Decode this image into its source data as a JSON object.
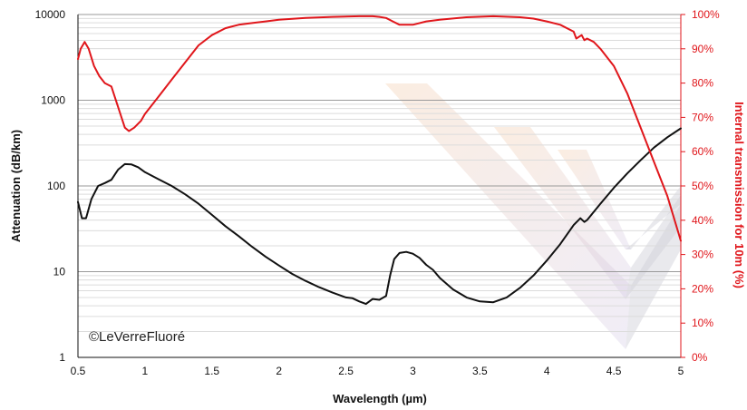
{
  "chart_data": {
    "type": "line",
    "xlabel": "Wavelength (µm)",
    "ylabel": "Attenuation (dB/km)",
    "y2label": "Internal transmission for 10m (%)",
    "annotation": "©LeVerreFluoré",
    "xlim": [
      0.5,
      5
    ],
    "ylim": [
      1,
      10000
    ],
    "y_scale": "log",
    "y2lim": [
      0,
      100
    ],
    "x_ticks": [
      "0.5",
      "1",
      "1.5",
      "2",
      "2.5",
      "3",
      "3.5",
      "4",
      "4.5",
      "5"
    ],
    "y_ticks": [
      "1",
      "10",
      "100",
      "1000",
      "10000"
    ],
    "y2_ticks": [
      "0%",
      "10%",
      "20%",
      "30%",
      "40%",
      "50%",
      "60%",
      "70%",
      "80%",
      "90%",
      "100%"
    ],
    "grid": true,
    "colors": {
      "attenuation": "#111111",
      "transmission": "#e0161b",
      "grid_major": "#9a9a9a",
      "grid_minor": "#dcdcdc"
    },
    "series": [
      {
        "axis": "left",
        "color": "#111111",
        "x": [
          0.5,
          0.53,
          0.56,
          0.6,
          0.65,
          0.7,
          0.75,
          0.8,
          0.85,
          0.9,
          0.95,
          1.0,
          1.1,
          1.2,
          1.3,
          1.4,
          1.5,
          1.6,
          1.7,
          1.8,
          1.9,
          2.0,
          2.1,
          2.2,
          2.3,
          2.4,
          2.5,
          2.55,
          2.6,
          2.65,
          2.7,
          2.75,
          2.8,
          2.83,
          2.86,
          2.9,
          2.95,
          3.0,
          3.05,
          3.1,
          3.15,
          3.2,
          3.3,
          3.4,
          3.5,
          3.6,
          3.7,
          3.8,
          3.9,
          4.0,
          4.1,
          4.2,
          4.25,
          4.28,
          4.3,
          4.4,
          4.5,
          4.6,
          4.7,
          4.8,
          4.9,
          5.0
        ],
        "values": [
          65,
          42,
          42,
          70,
          100,
          108,
          118,
          155,
          180,
          178,
          165,
          145,
          120,
          100,
          80,
          62,
          46,
          34,
          26,
          19.5,
          15,
          11.8,
          9.4,
          7.8,
          6.6,
          5.7,
          5.0,
          4.9,
          4.5,
          4.2,
          4.8,
          4.7,
          5.2,
          9.0,
          14.0,
          16.5,
          17.0,
          16.2,
          14.5,
          12.0,
          10.5,
          8.5,
          6.2,
          5.0,
          4.5,
          4.4,
          5.0,
          6.5,
          9.0,
          13.5,
          21,
          35,
          42,
          38,
          40,
          62,
          95,
          140,
          200,
          280,
          370,
          470
        ]
      },
      {
        "axis": "right",
        "color": "#e0161b",
        "x": [
          0.5,
          0.52,
          0.55,
          0.58,
          0.62,
          0.66,
          0.7,
          0.75,
          0.8,
          0.85,
          0.88,
          0.92,
          0.97,
          1.0,
          1.1,
          1.2,
          1.3,
          1.4,
          1.5,
          1.6,
          1.7,
          1.8,
          1.9,
          2.0,
          2.2,
          2.4,
          2.6,
          2.7,
          2.75,
          2.8,
          2.85,
          2.9,
          3.0,
          3.1,
          3.2,
          3.4,
          3.6,
          3.8,
          3.9,
          4.0,
          4.1,
          4.2,
          4.22,
          4.26,
          4.28,
          4.3,
          4.35,
          4.4,
          4.5,
          4.6,
          4.7,
          4.8,
          4.9,
          5.0
        ],
        "values": [
          87,
          90,
          92,
          90,
          85,
          82,
          80,
          79,
          73,
          67,
          66,
          67,
          69,
          71,
          76,
          81,
          86,
          91,
          94,
          96,
          97,
          97.5,
          98,
          98.5,
          99,
          99.3,
          99.5,
          99.5,
          99.3,
          99.0,
          98,
          97,
          97,
          98,
          98.5,
          99.2,
          99.5,
          99.2,
          98.8,
          98,
          97,
          95,
          93,
          94,
          92.5,
          93,
          92,
          90,
          85,
          77,
          67,
          57,
          47,
          34
        ]
      }
    ]
  }
}
